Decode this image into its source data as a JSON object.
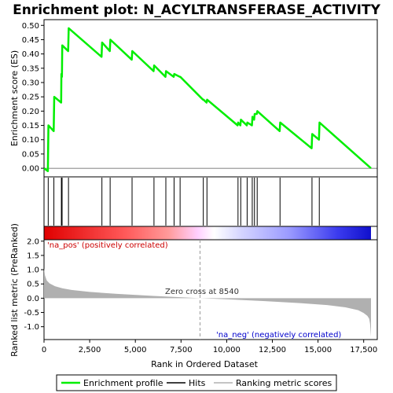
{
  "chart_data": {
    "title": "Enrichment plot: N_ACYLTRANSFERASE_ACTIVITY",
    "type": "line",
    "x_range": [
      0,
      17900
    ],
    "top_panel": {
      "ylabel": "Enrichment score (ES)",
      "ylim": [
        -0.03,
        0.52
      ],
      "yticks": [
        0.0,
        0.05,
        0.1,
        0.15,
        0.2,
        0.25,
        0.3,
        0.35,
        0.4,
        0.45,
        0.5
      ],
      "ytick_labels": [
        "0.00",
        "0.05",
        "0.10",
        "0.15",
        "0.20",
        "0.25",
        "0.30",
        "0.35",
        "0.40",
        "0.45",
        "0.50"
      ],
      "series": [
        {
          "name": "Enrichment profile",
          "color": "#00ee00",
          "x": [
            0,
            210,
            240,
            530,
            560,
            940,
            950,
            980,
            1000,
            1320,
            1350,
            3150,
            3180,
            3600,
            3630,
            4800,
            4830,
            6000,
            6030,
            6650,
            6680,
            7100,
            7130,
            7430,
            7460,
            8700,
            8730,
            8900,
            8930,
            10600,
            10630,
            10750,
            10780,
            11100,
            11130,
            11380,
            11410,
            11500,
            11530,
            11650,
            11680,
            12900,
            12930,
            14650,
            14680,
            15050,
            15080,
            17900
          ],
          "y": [
            0.0,
            -0.01,
            0.15,
            0.13,
            0.25,
            0.23,
            0.33,
            0.32,
            0.43,
            0.41,
            0.49,
            0.39,
            0.44,
            0.41,
            0.45,
            0.38,
            0.41,
            0.34,
            0.36,
            0.32,
            0.34,
            0.32,
            0.33,
            0.32,
            0.32,
            0.24,
            0.24,
            0.23,
            0.24,
            0.15,
            0.16,
            0.15,
            0.17,
            0.15,
            0.16,
            0.15,
            0.18,
            0.17,
            0.19,
            0.19,
            0.2,
            0.13,
            0.16,
            0.07,
            0.12,
            0.1,
            0.16,
            0.0
          ]
        }
      ]
    },
    "hits": {
      "name": "Hits",
      "x": [
        230,
        540,
        950,
        990,
        1340,
        3170,
        3620,
        4820,
        6020,
        6670,
        7120,
        7450,
        8720,
        8920,
        10620,
        10770,
        11120,
        11400,
        11520,
        11670,
        12920,
        14670,
        15070
      ]
    },
    "bottom_panel": {
      "ylabel": "Ranked list metric (PreRanked)",
      "xlabel": "Rank in Ordered Dataset",
      "ylim": [
        -1.45,
        2.05
      ],
      "yticks": [
        2.0,
        1.5,
        1.0,
        0.5,
        0.0,
        -0.5,
        -1.0
      ],
      "ytick_labels": [
        "2.0",
        "1.5",
        "1.0",
        "0.5",
        "0.0",
        "-0.5",
        "-1.0"
      ],
      "xticks": [
        0,
        2500,
        5000,
        7500,
        10000,
        12500,
        15000,
        17500
      ],
      "xtick_labels": [
        "0",
        "2,500",
        "5,000",
        "7,500",
        "10,000",
        "12,500",
        "15,000",
        "17,500"
      ],
      "series": [
        {
          "name": "Ranking metric scores",
          "color": "#b0b0b0",
          "x": [
            0,
            50,
            150,
            300,
            600,
            1000,
            1500,
            2500,
            4000,
            6000,
            8540,
            10000,
            12000,
            14000,
            15500,
            16500,
            17200,
            17500,
            17700,
            17800,
            17850,
            17900
          ],
          "y": [
            1.05,
            0.8,
            0.62,
            0.52,
            0.42,
            0.35,
            0.29,
            0.22,
            0.15,
            0.08,
            0.0,
            -0.04,
            -0.1,
            -0.17,
            -0.24,
            -0.32,
            -0.42,
            -0.52,
            -0.62,
            -0.72,
            -0.9,
            -1.35
          ]
        }
      ],
      "zero_cross": 8540,
      "annotations": {
        "zero_cross_label": "Zero cross at 8540",
        "pos_label": "'na_pos' (positively correlated)",
        "neg_label": "'na_neg' (negatively correlated)"
      }
    },
    "legend": {
      "placement": "bottom",
      "entries": [
        {
          "label": "Enrichment profile",
          "color": "#00ee00"
        },
        {
          "label": "Hits",
          "color": "#000000"
        },
        {
          "label": "Ranking metric scores",
          "color": "#b0b0b0"
        }
      ]
    },
    "colors": {
      "pos": "#ff0000",
      "neg": "#0000ff",
      "pos_label": "#cc0000",
      "neg_label": "#0000cc"
    }
  }
}
